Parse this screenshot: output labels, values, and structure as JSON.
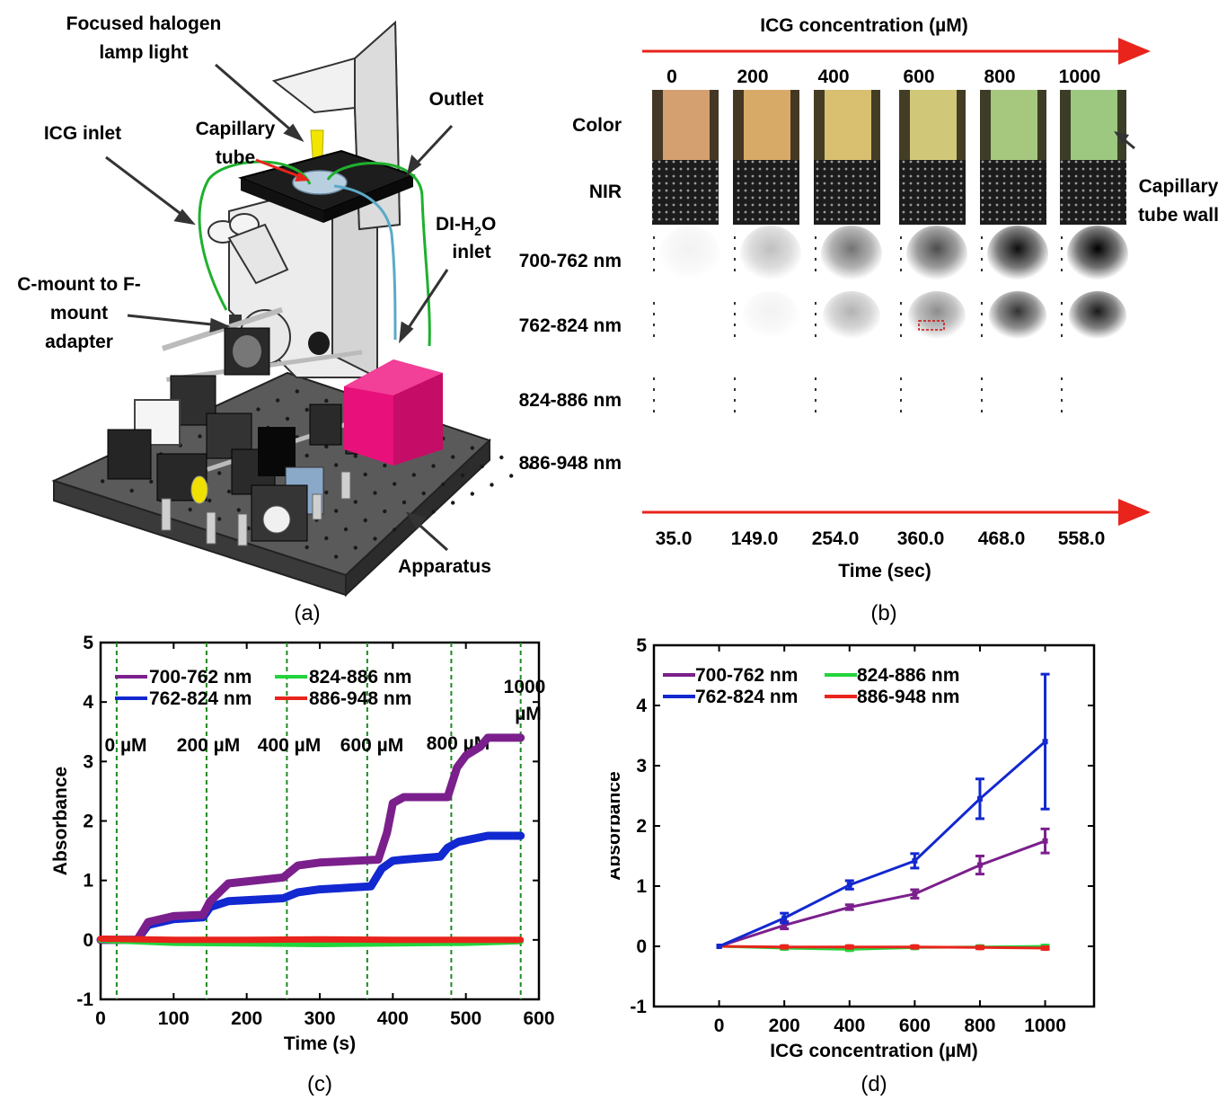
{
  "panel_a": {
    "caption": "(a)",
    "labels": {
      "halogen": [
        "Focused halogen",
        "lamp light"
      ],
      "outlet": "Outlet",
      "icg_inlet": "ICG inlet",
      "capillary": [
        "Capillary",
        "tube"
      ],
      "di_inlet_1": "DI-H",
      "di_inlet_sub": "2",
      "di_inlet_2": "O",
      "di_inlet_3": "inlet",
      "cmount": [
        "C-mount to F-",
        "mount",
        "adapter"
      ],
      "apparatus": "Apparatus"
    },
    "colors": {
      "box": "#e8107a",
      "tubing_green": "#1fb02e",
      "tubing_blue": "#5aaac8",
      "lamp": "#f2e600"
    }
  },
  "panel_b": {
    "caption": "(b)",
    "top_title": "ICG concentration (µM)",
    "concentrations": [
      "0",
      "200",
      "400",
      "600",
      "800",
      "1000"
    ],
    "rows": [
      "Color",
      "NIR",
      "700-762 nm",
      "762-824 nm",
      "824-886 nm",
      "886-948 nm"
    ],
    "annotation": [
      "Capillary",
      "tube wall"
    ],
    "times": [
      "35.0",
      "149.0",
      "254.0",
      "360.0",
      "468.0",
      "558.0"
    ],
    "bottom_title": "Time (sec)",
    "band_700_intensity": [
      0.05,
      0.25,
      0.55,
      0.7,
      0.95,
      1.0
    ],
    "band_762_intensity": [
      0.0,
      0.05,
      0.3,
      0.45,
      0.8,
      0.9
    ],
    "color_tints": [
      "#d4a070",
      "#d8aa68",
      "#d8c070",
      "#d0c878",
      "#a6c87e",
      "#9cc880"
    ]
  },
  "chart_data": [
    {
      "id": "c",
      "caption": "(c)",
      "type": "line",
      "xlabel": "Time (s)",
      "ylabel": "Absorbance",
      "xlim": [
        0,
        600
      ],
      "ylim": [
        -1,
        5
      ],
      "xticks": [
        "0",
        "100",
        "200",
        "300",
        "400",
        "500",
        "600"
      ],
      "yticks": [
        "-1",
        "0",
        "1",
        "2",
        "3",
        "4",
        "5"
      ],
      "legend": "top-left",
      "vlines": [
        22,
        145,
        255,
        365,
        480,
        575
      ],
      "vline_labels": [
        "0 µM",
        "200 µM",
        "400 µM",
        "600 µM",
        "800 µM",
        "1000",
        "µM"
      ],
      "series": [
        {
          "name": "700-762 nm",
          "color": "#7b1f8c",
          "x": [
            0,
            50,
            65,
            100,
            140,
            150,
            175,
            250,
            270,
            300,
            380,
            392,
            400,
            415,
            475,
            488,
            500,
            520,
            530,
            575
          ],
          "y": [
            0,
            0,
            0.3,
            0.4,
            0.42,
            0.65,
            0.95,
            1.05,
            1.25,
            1.3,
            1.35,
            1.8,
            2.3,
            2.4,
            2.4,
            2.9,
            3.1,
            3.25,
            3.4,
            3.4
          ]
        },
        {
          "name": "762-824 nm",
          "color": "#1228d0",
          "x": [
            0,
            50,
            65,
            100,
            140,
            150,
            175,
            250,
            270,
            300,
            370,
            385,
            400,
            415,
            465,
            475,
            490,
            510,
            530,
            575
          ],
          "y": [
            0,
            0,
            0.25,
            0.35,
            0.38,
            0.55,
            0.65,
            0.7,
            0.8,
            0.85,
            0.9,
            1.2,
            1.33,
            1.35,
            1.4,
            1.55,
            1.65,
            1.7,
            1.75,
            1.75
          ]
        },
        {
          "name": "824-886 nm",
          "color": "#22d43c",
          "x": [
            0,
            100,
            200,
            300,
            400,
            500,
            575
          ],
          "y": [
            0,
            -0.05,
            -0.06,
            -0.07,
            -0.06,
            -0.05,
            -0.02
          ]
        },
        {
          "name": "886-948 nm",
          "color": "#e8241c",
          "x": [
            0,
            100,
            200,
            300,
            400,
            500,
            575
          ],
          "y": [
            0.02,
            0.0,
            0.0,
            0.01,
            0.0,
            0.0,
            0.0
          ]
        }
      ]
    },
    {
      "id": "d",
      "caption": "(d)",
      "type": "line",
      "xlabel": "ICG concentration (µM)",
      "ylabel": "Absorbance",
      "xlim": [
        -200,
        1150
      ],
      "ylim": [
        -1,
        5
      ],
      "xticks": [
        "0",
        "200",
        "400",
        "600",
        "800",
        "1000"
      ],
      "yticks": [
        "-1",
        "0",
        "1",
        "2",
        "3",
        "4",
        "5"
      ],
      "legend": "top-left",
      "x": [
        0,
        200,
        400,
        600,
        800,
        1000
      ],
      "series": [
        {
          "name": "700-762 nm",
          "color": "#7b1f8c",
          "y": [
            0,
            0.35,
            0.65,
            0.87,
            1.35,
            1.75
          ],
          "err": [
            0,
            0.06,
            0.04,
            0.07,
            0.15,
            0.2
          ]
        },
        {
          "name": "762-824 nm",
          "color": "#1228d0",
          "y": [
            0,
            0.47,
            1.02,
            1.42,
            2.45,
            3.4
          ],
          "err": [
            0,
            0.08,
            0.07,
            0.12,
            0.33,
            1.12
          ]
        },
        {
          "name": "824-886 nm",
          "color": "#22d43c",
          "y": [
            0,
            -0.03,
            -0.05,
            -0.02,
            -0.01,
            0.0
          ],
          "err": [
            0,
            0.02,
            0.02,
            0.02,
            0.02,
            0.02
          ]
        },
        {
          "name": "886-948 nm",
          "color": "#e8241c",
          "y": [
            0,
            -0.01,
            -0.01,
            -0.01,
            -0.02,
            -0.03
          ],
          "err": [
            0,
            0.02,
            0.02,
            0.02,
            0.02,
            0.02
          ]
        }
      ]
    }
  ]
}
